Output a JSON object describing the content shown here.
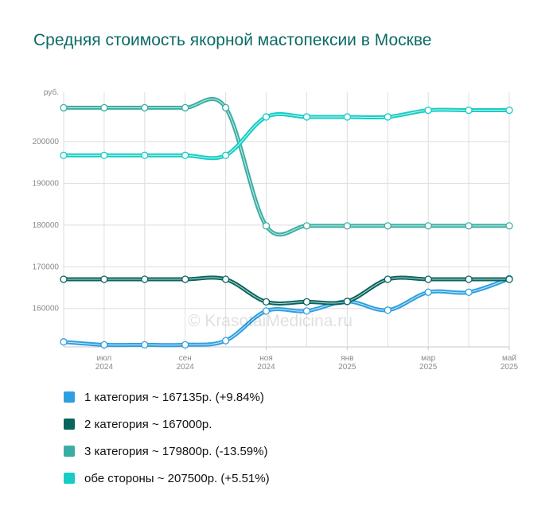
{
  "chart_data": {
    "type": "line",
    "title": "Средняя стоимость якорной мастопексии в Москве",
    "y_unit": "руб.",
    "ylim": [
      150800,
      211800
    ],
    "yticks": [
      160000,
      170000,
      180000,
      190000,
      200000
    ],
    "xlim": [
      0,
      11
    ],
    "x_ticks": [
      {
        "x": 1,
        "month": "июл",
        "year": "2024"
      },
      {
        "x": 3,
        "month": "сен",
        "year": "2024"
      },
      {
        "x": 5,
        "month": "ноя",
        "year": "2024"
      },
      {
        "x": 7,
        "month": "янв",
        "year": "2025"
      },
      {
        "x": 9,
        "month": "мар",
        "year": "2025"
      },
      {
        "x": 11,
        "month": "май",
        "year": "2025"
      }
    ],
    "series": [
      {
        "name": "1 категория",
        "color": "#2e9fe0",
        "values": [
          152000,
          151300,
          151300,
          151300,
          152300,
          159400,
          159400,
          161700,
          159600,
          163900,
          163900,
          167135
        ]
      },
      {
        "name": "2 категория",
        "color": "#08645e",
        "values": [
          167000,
          167000,
          167000,
          167000,
          167000,
          161600,
          161600,
          161700,
          167000,
          167000,
          167000,
          167000
        ]
      },
      {
        "name": "3 категория",
        "color": "#3aaea2",
        "values": [
          208100,
          208100,
          208100,
          208100,
          208100,
          179800,
          179800,
          179800,
          179800,
          179800,
          179800,
          179800
        ]
      },
      {
        "name": "обе стороны",
        "color": "#16cdc6",
        "values": [
          196700,
          196700,
          196700,
          196700,
          196700,
          205900,
          205900,
          205900,
          205900,
          207500,
          207500,
          207500
        ]
      }
    ],
    "legend": [
      {
        "label": "1 категория ~ 167135р. (+9.84%)",
        "color": "#2e9fe0"
      },
      {
        "label": "2 категория ~ 167000р.",
        "color": "#08645e"
      },
      {
        "label": "3 категория ~ 179800р. (-13.59%)",
        "color": "#3aaea2"
      },
      {
        "label": "обе стороны ~ 207500р. (+5.51%)",
        "color": "#16cdc6"
      }
    ],
    "legend_position": "bottom",
    "grid": true
  },
  "watermark": "© KrasotaiMedicina.ru"
}
